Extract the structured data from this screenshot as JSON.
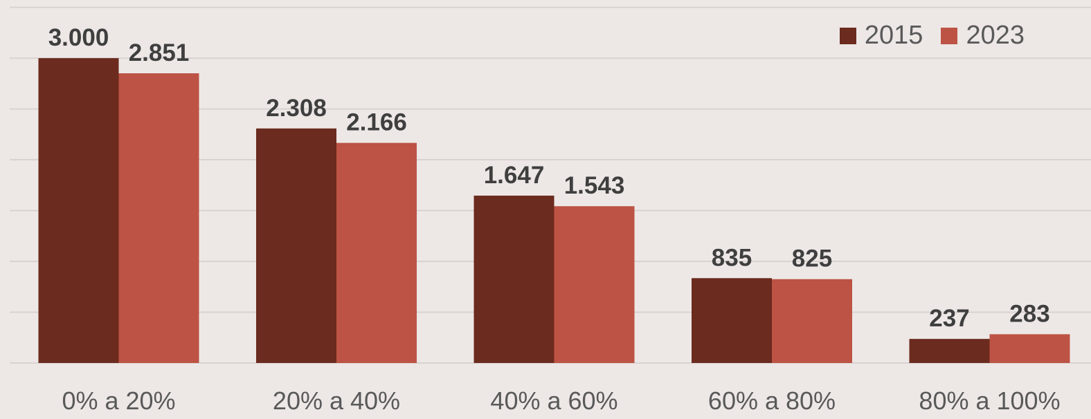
{
  "chart_data": {
    "type": "bar",
    "categories": [
      "0% a 20%",
      "20% a 40%",
      "40% a 60%",
      "60% a 80%",
      "80% a 100%"
    ],
    "series": [
      {
        "name": "2015",
        "values": [
          3000,
          2308,
          1647,
          835,
          237
        ],
        "labels": [
          "3.000",
          "2.308",
          "1.647",
          "835",
          "237"
        ],
        "color": "#6b2b1e"
      },
      {
        "name": "2023",
        "values": [
          2851,
          2166,
          1543,
          825,
          283
        ],
        "labels": [
          "2.851",
          "2.166",
          "1.543",
          "825",
          "283"
        ],
        "color": "#bd5344"
      }
    ],
    "title": "",
    "xlabel": "",
    "ylabel": "",
    "ylim": [
      0,
      3500
    ],
    "grid": true,
    "legend": "top-right",
    "colors": {
      "background": "#ede8e6",
      "grid": "#d8d3d1",
      "label_text": "#3f3f3f",
      "tick_text": "#595959"
    }
  }
}
